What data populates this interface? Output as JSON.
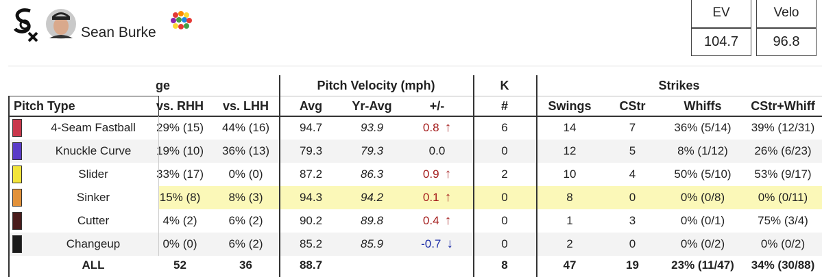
{
  "header": {
    "player_name": "Sean Burke",
    "stats": {
      "labels": [
        "EV",
        "Velo"
      ],
      "values": [
        "104.7",
        "96.8"
      ]
    }
  },
  "table": {
    "group_headers": [
      "ge",
      "Pitch Velocity (mph)",
      "K",
      "Strikes"
    ],
    "columns": [
      "Pitch Type",
      "vs. RHH",
      "vs. LHH",
      "Avg",
      "Yr-Avg",
      "+/-",
      "#",
      "Swings",
      "CStr",
      "Whiffs",
      "CStr+Whiff"
    ],
    "rows": [
      {
        "color": "#c9384c",
        "background": "#ffffff",
        "cells": [
          "4-Seam Fastball",
          "29% (15)",
          "44% (16)",
          "94.7",
          "93.9",
          {
            "value": "0.8",
            "arrow": "↑",
            "color": "#a31a1a"
          },
          "6",
          "14",
          "7",
          "36% (5/14)",
          "39% (12/31)"
        ]
      },
      {
        "color": "#5a3cc8",
        "background": "#f3f3f3",
        "cells": [
          "Knuckle Curve",
          "19% (10)",
          "36% (13)",
          "79.3",
          "79.3",
          {
            "value": "0.0"
          },
          "0",
          "12",
          "5",
          "8% (1/12)",
          "26% (6/23)"
        ]
      },
      {
        "color": "#f2e43a",
        "background": "#ffffff",
        "cells": [
          "Slider",
          "33% (17)",
          "0% (0)",
          "87.2",
          "86.3",
          {
            "value": "0.9",
            "arrow": "↑",
            "color": "#a31a1a"
          },
          "2",
          "10",
          "4",
          "50% (5/10)",
          "53% (9/17)"
        ]
      },
      {
        "color": "#e2913a",
        "background": "#fbf8b8",
        "cells": [
          "Sinker",
          "15% (8)",
          "8% (3)",
          "94.3",
          "94.2",
          {
            "value": "0.1",
            "arrow": "↑",
            "color": "#a31a1a"
          },
          "0",
          "8",
          "0",
          "0% (0/8)",
          "0% (0/11)"
        ]
      },
      {
        "color": "#4a1c1c",
        "background": "#ffffff",
        "cells": [
          "Cutter",
          "4% (2)",
          "6% (2)",
          "90.2",
          "89.8",
          {
            "value": "0.4",
            "arrow": "↑",
            "color": "#a31a1a"
          },
          "0",
          "1",
          "3",
          "0% (0/1)",
          "75% (3/4)"
        ]
      },
      {
        "color": "#1a1a1a",
        "background": "#f3f3f3",
        "cells": [
          "Changeup",
          "0% (0)",
          "6% (2)",
          "85.2",
          "85.9",
          {
            "value": "-0.7",
            "arrow": "↓",
            "color": "#1f2fa8"
          },
          "0",
          "2",
          "0",
          "0% (0/2)",
          "0% (0/2)"
        ]
      }
    ],
    "total": [
      "ALL",
      "52",
      "36",
      "88.7",
      null,
      null,
      "8",
      "47",
      "19",
      "23% (11/47)",
      "34% (30/88)"
    ]
  }
}
